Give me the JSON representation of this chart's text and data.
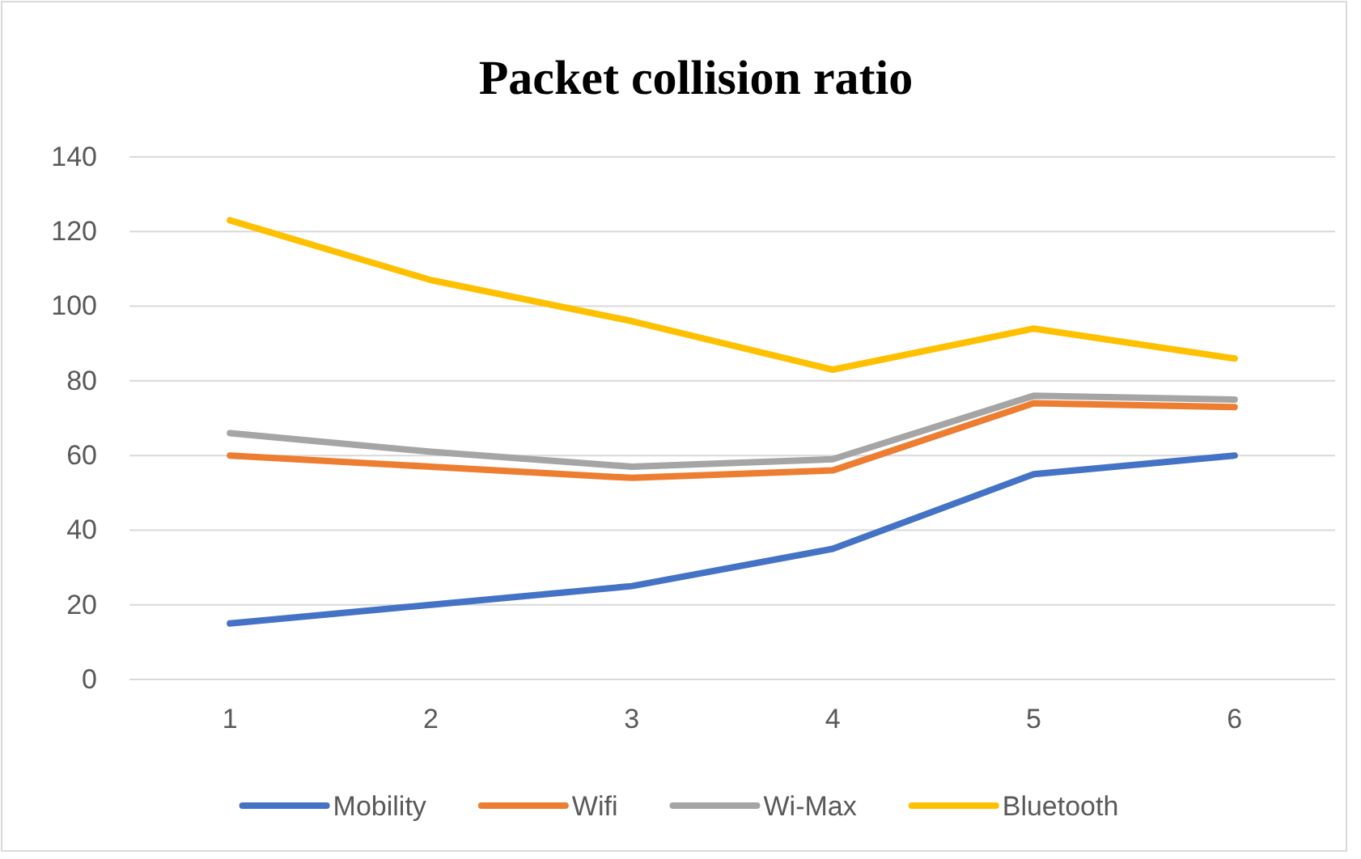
{
  "chart_data": {
    "type": "line",
    "title": "Packet collision ratio",
    "categories": [
      "1",
      "2",
      "3",
      "4",
      "5",
      "6"
    ],
    "series": [
      {
        "name": "Mobility",
        "color": "#4472c4",
        "values": [
          15,
          20,
          25,
          35,
          55,
          60
        ]
      },
      {
        "name": "Wifi",
        "color": "#ed7d31",
        "values": [
          60,
          57,
          54,
          56,
          74,
          73
        ]
      },
      {
        "name": "Wi-Max",
        "color": "#a5a5a5",
        "values": [
          66,
          61,
          57,
          59,
          76,
          75
        ]
      },
      {
        "name": "Bluetooth",
        "color": "#ffc000",
        "values": [
          123,
          107,
          96,
          83,
          94,
          86
        ]
      }
    ],
    "ylim": [
      0,
      140
    ],
    "yticks": [
      0,
      20,
      40,
      60,
      80,
      100,
      120,
      140
    ],
    "grid": "y",
    "legend": "bottom",
    "marker": "none",
    "line_style": "solid"
  }
}
